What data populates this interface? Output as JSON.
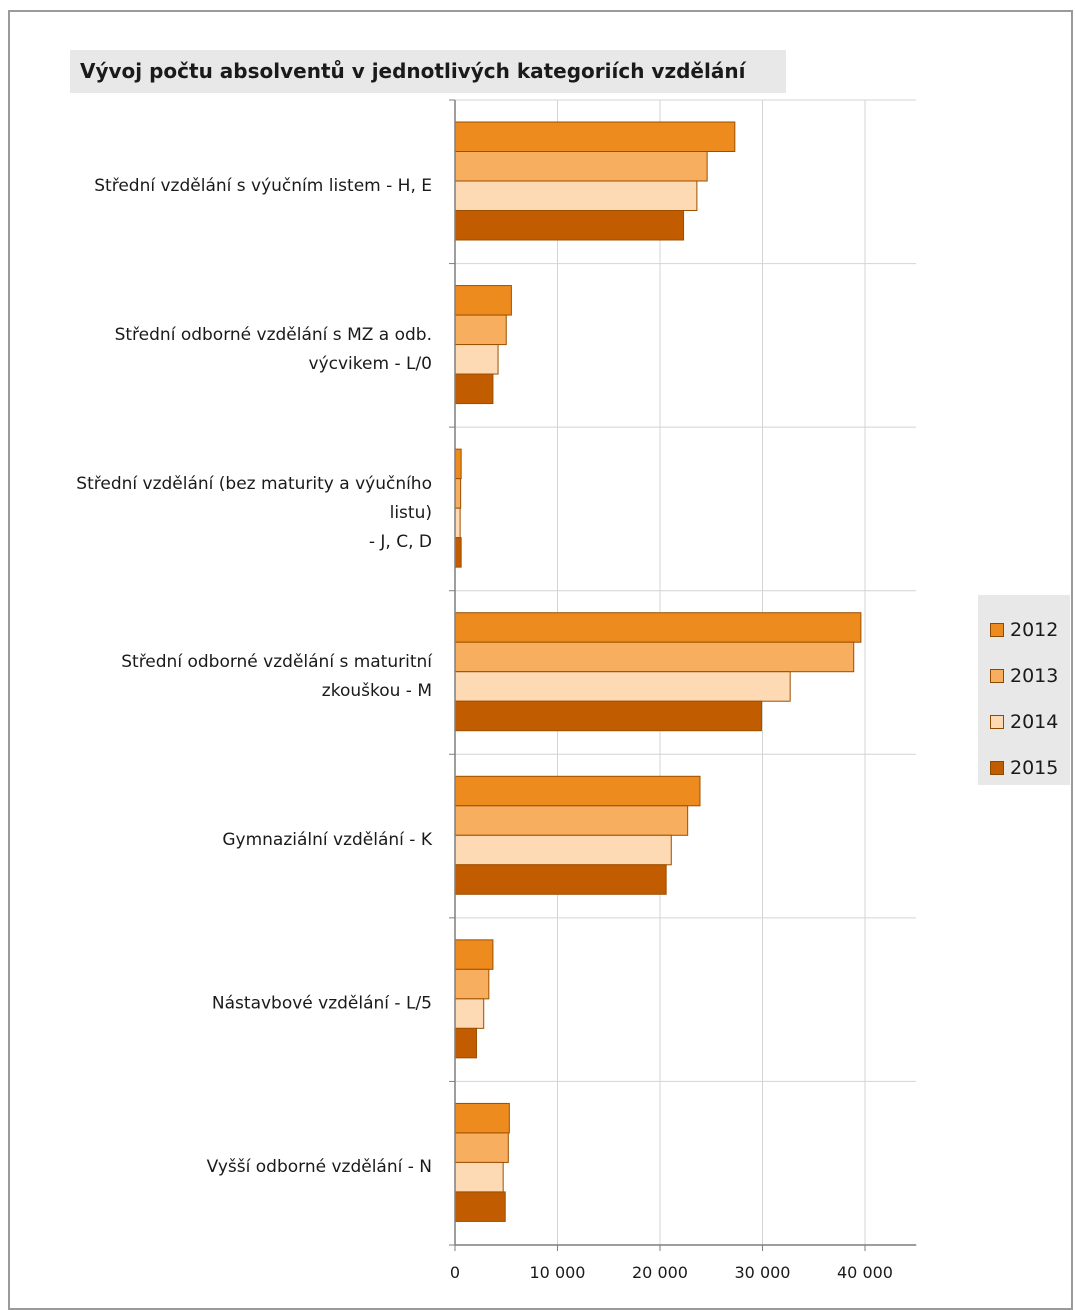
{
  "chart_data": {
    "type": "bar",
    "orientation": "horizontal",
    "title": "Vývoj počtu absolventů v jednotlivých kategoriích vzdělání",
    "categories": [
      [
        "Střední vzdělání s výučním listem - H, E"
      ],
      [
        "Střední odborné vzdělání s MZ a odb.",
        "výcvikem - L/0"
      ],
      [
        "Střední vzdělání (bez maturity a výučního",
        "listu)",
        "- J, C, D"
      ],
      [
        "Střední odborné vzdělání s maturitní",
        "zkouškou - M"
      ],
      [
        "Gymnaziální vzdělání - K"
      ],
      [
        "Nástavbové vzdělání - L/5"
      ],
      [
        "Vyšší odborné vzdělání - N"
      ]
    ],
    "series": [
      {
        "name": "2012",
        "color": "#ED8B1F",
        "values": [
          27300,
          5500,
          600,
          39600,
          23900,
          3700,
          5300
        ]
      },
      {
        "name": "2013",
        "color": "#F7AE5E",
        "values": [
          24600,
          5000,
          550,
          38900,
          22700,
          3300,
          5200
        ]
      },
      {
        "name": "2014",
        "color": "#FDD9B4",
        "values": [
          23600,
          4200,
          500,
          32700,
          21100,
          2800,
          4700
        ]
      },
      {
        "name": "2015",
        "color": "#C15D00",
        "values": [
          22300,
          3700,
          600,
          29900,
          20600,
          2100,
          4900
        ]
      }
    ],
    "xlim": [
      0,
      45000
    ],
    "xticks": [
      0,
      10000,
      20000,
      30000,
      40000
    ],
    "xtick_labels": [
      "0",
      "10 000",
      "20 000",
      "30 000",
      "40 000"
    ],
    "grid": true,
    "legend": "right"
  }
}
